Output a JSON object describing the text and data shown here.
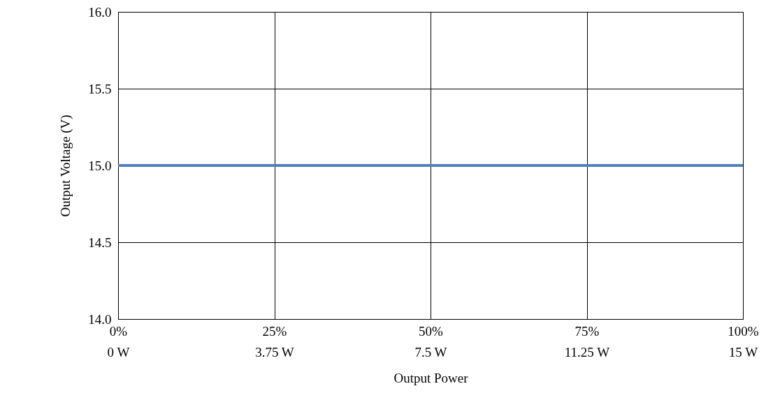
{
  "chart_data": {
    "type": "line",
    "xlabel": "Output Power",
    "ylabel": "Output Voltage (V)",
    "categories": [
      "0%\n0 W",
      "25%\n3.75 W",
      "50%\n7.5 W",
      "75%\n11.25 W",
      "100%\n15 W"
    ],
    "series": [
      {
        "color": "#4f81bd",
        "values": [
          15,
          15,
          15,
          15,
          15
        ]
      }
    ],
    "ylim": [
      14,
      16
    ],
    "yticks": [
      {
        "value": 14,
        "label": "14.0"
      },
      {
        "value": 14.5,
        "label": "14.5"
      },
      {
        "value": 15,
        "label": "15.0"
      },
      {
        "value": 15.5,
        "label": "15.5"
      },
      {
        "value": 16,
        "label": "16.0"
      }
    ],
    "grid": true,
    "marker": "none",
    "line_style": "solid"
  }
}
